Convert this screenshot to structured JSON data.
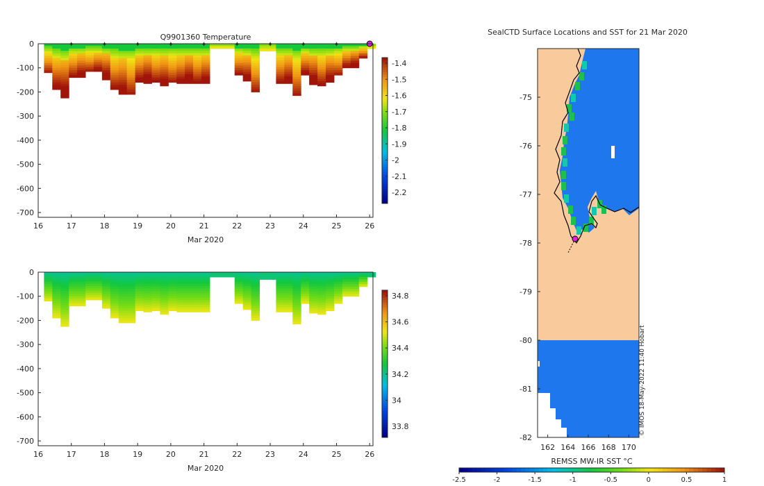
{
  "figure": {
    "watermark": "© IMOS 18-May-2022 11:40 Hobart"
  },
  "chart_data": [
    {
      "id": "temperature",
      "type": "heatmap",
      "title": "Q9901360  Temperature",
      "xlabel": "Mar 2020",
      "ylabel": "",
      "xlim": [
        16,
        26.1
      ],
      "ylim": [
        -720,
        0
      ],
      "xticks": [
        16,
        17,
        18,
        19,
        20,
        21,
        22,
        23,
        24,
        25,
        26
      ],
      "yticks": [
        0,
        -100,
        -200,
        -300,
        -400,
        -500,
        -600,
        -700
      ],
      "colorbar": {
        "ticks": [
          "-1.4",
          "-1.5",
          "-1.6",
          "-1.7",
          "-1.8",
          "-1.9",
          "-2",
          "-2.1",
          "-2.2"
        ],
        "range": [
          -2.3,
          -1.35
        ],
        "colormap": "parula-jet"
      },
      "profile_days": [
        16.3,
        16.55,
        16.8,
        17.05,
        17.3,
        17.55,
        17.8,
        18.05,
        18.3,
        18.55,
        18.8,
        19.05,
        19.3,
        19.55,
        19.8,
        20.05,
        20.3,
        20.55,
        20.8,
        21.05,
        21.3,
        21.55,
        21.8,
        22.05,
        22.3,
        22.55,
        22.8,
        23.05,
        23.3,
        23.55,
        23.8,
        24.05,
        24.3,
        24.55,
        24.8,
        25.05,
        25.3,
        25.55,
        25.8,
        26.05
      ],
      "profile_depths": [
        120,
        190,
        225,
        140,
        140,
        115,
        115,
        150,
        190,
        210,
        210,
        160,
        165,
        160,
        175,
        160,
        165,
        165,
        165,
        165,
        20,
        20,
        20,
        130,
        155,
        200,
        30,
        30,
        165,
        165,
        215,
        130,
        170,
        175,
        160,
        130,
        100,
        100,
        60,
        20
      ],
      "surface_markers_days": [
        17,
        18,
        19,
        20,
        21,
        22,
        23,
        24,
        25
      ],
      "current_marker_day": 26
    },
    {
      "id": "salinity",
      "type": "heatmap",
      "title": "",
      "xlabel": "Mar 2020",
      "ylabel": "",
      "xlim": [
        16,
        26.1
      ],
      "ylim": [
        -720,
        0
      ],
      "xticks": [
        16,
        17,
        18,
        19,
        20,
        21,
        22,
        23,
        24,
        25,
        26
      ],
      "yticks": [
        0,
        -100,
        -200,
        -300,
        -400,
        -500,
        -600,
        -700
      ],
      "colorbar": {
        "ticks": [
          "34.8",
          "34.6",
          "34.4",
          "34.2",
          "34",
          "33.8"
        ],
        "range": [
          33.65,
          35
        ],
        "colormap": "parula-jet"
      }
    },
    {
      "id": "sst_map",
      "type": "heatmap",
      "title": "SealCTD Surface Locations and SST for 21 Mar 2020",
      "xlabel": "",
      "ylabel": "",
      "lon_range": [
        161,
        171
      ],
      "lat_range": [
        -82,
        -74
      ],
      "xticks": [
        162,
        164,
        166,
        168,
        170
      ],
      "yticks": [
        -75,
        -76,
        -77,
        -78,
        -79,
        -80,
        -81,
        -82
      ],
      "colorbar": {
        "label": "REMSS MW-IR SST °C",
        "ticks": [
          "-2.5",
          "-2",
          "-1.5",
          "-1",
          "-0.5",
          "0",
          "0.5",
          "1"
        ],
        "range": [
          -2.5,
          1
        ]
      },
      "land_color": "#f9cb9c",
      "ocean_color": "#1f77ee",
      "track_end": {
        "lon": 164.6,
        "lat": -77.9
      }
    }
  ]
}
